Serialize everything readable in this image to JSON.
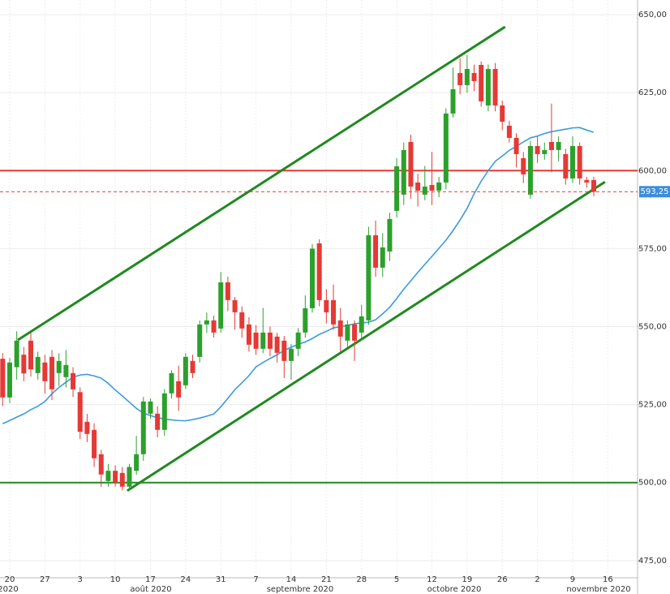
{
  "chart_data": {
    "type": "candlestick",
    "categories": [
      null,
      "20",
      null,
      null,
      null,
      null,
      "27",
      null,
      null,
      null,
      null,
      "3",
      null,
      null,
      null,
      null,
      "10",
      null,
      null,
      null,
      null,
      "17",
      null,
      null,
      null,
      null,
      "24",
      null,
      null,
      null,
      null,
      "31",
      null,
      null,
      null,
      null,
      "7",
      null,
      null,
      null,
      null,
      "14",
      null,
      null,
      null,
      null,
      "21",
      null,
      null,
      null,
      null,
      "28",
      null,
      null,
      null,
      null,
      "5",
      null,
      null,
      null,
      null,
      "12",
      null,
      null,
      null,
      null,
      "19",
      null,
      null,
      null,
      null,
      "26",
      null,
      null,
      null,
      null,
      "2",
      null,
      null,
      null,
      null,
      "9",
      null,
      null,
      null,
      null,
      "16"
    ],
    "month_labels": [
      "2020",
      "août 2020",
      "septembre 2020",
      "octobre 2020",
      "novembre 2020"
    ],
    "open": [
      539.7,
      527.3,
      537,
      541,
      545.5,
      535.1,
      538.5,
      540.3,
      535.1,
      533.8,
      535.1,
      529,
      519.5,
      516.9,
      509.1,
      500.5,
      503.8,
      503.1,
      498.7,
      503.8,
      509.1,
      522.1,
      522.1,
      516.9,
      528.6,
      532.5,
      531.2,
      539,
      540.3,
      550.7,
      552,
      549.4,
      564.2,
      558.5,
      554.6,
      550.7,
      548.1,
      542.9,
      548.1,
      546.8,
      545.5,
      539,
      542.9,
      548.1,
      555.9,
      576.7,
      558.5,
      558.5,
      552,
      545.5,
      550.7,
      548.1,
      552,
      579.3,
      568.9,
      574.1,
      587.1,
      592.3,
      609.2,
      596.2,
      592.3,
      595.4,
      593.6,
      596.2,
      618.3,
      631.3,
      627.4,
      631.3,
      633.9,
      620.9,
      632.6,
      620.9,
      614.4,
      610.5,
      604,
      592.3,
      607.9,
      605.3,
      609.2,
      606.6,
      605.3,
      597.5,
      607.9,
      597,
      597,
      null,
      null
    ],
    "high": [
      541.5,
      540,
      548.5,
      543.5,
      548,
      542,
      541,
      542.5,
      541.5,
      542.5,
      537,
      530.5,
      522,
      519,
      510.5,
      506,
      505.5,
      505,
      506,
      515,
      527.5,
      527,
      524.5,
      530,
      536,
      537.5,
      541.5,
      541,
      552,
      554.5,
      553.5,
      567.5,
      566,
      559.5,
      556.5,
      553,
      550.5,
      556,
      550,
      548,
      547,
      544.5,
      549.5,
      560,
      576.5,
      578,
      562,
      563.5,
      556,
      552,
      552,
      557,
      582,
      584,
      580,
      586.5,
      604,
      609,
      611.5,
      599,
      601.5,
      606,
      598,
      620,
      633,
      636,
      637,
      634,
      635,
      634,
      634.5,
      622.5,
      616,
      612,
      606,
      609.5,
      611,
      609,
      621.5,
      611,
      607,
      611,
      609,
      598,
      598,
      null,
      null
    ],
    "low": [
      524.5,
      525.5,
      533,
      532.5,
      534,
      533,
      528.5,
      526.5,
      531,
      530.5,
      527.5,
      514,
      513,
      505,
      498.7,
      498.7,
      498.7,
      497.5,
      497.5,
      502.5,
      507,
      520.5,
      514.5,
      515,
      527,
      523,
      530,
      533.5,
      538.5,
      548,
      546.5,
      548,
      555,
      549,
      546.5,
      542,
      541,
      541.5,
      540.5,
      538.5,
      533.5,
      533,
      540.5,
      546.5,
      554.5,
      556.5,
      551,
      549,
      542,
      543.5,
      539,
      546,
      550.5,
      566,
      566,
      571,
      585,
      589,
      591,
      588.5,
      590.5,
      589,
      591.5,
      594,
      617,
      624.5,
      625,
      625.5,
      620.5,
      619,
      619,
      613,
      609,
      601,
      596,
      591,
      602.5,
      603.5,
      599.5,
      603,
      595.5,
      596,
      595.5,
      594.5,
      591.8,
      null,
      null
    ],
    "close": [
      527.3,
      538.5,
      545.5,
      535,
      536.3,
      540.3,
      532.5,
      529.9,
      539,
      537.7,
      529.9,
      516.3,
      515.6,
      507.8,
      502.6,
      503.8,
      500,
      498.7,
      505,
      509.1,
      526,
      526,
      516.9,
      528.6,
      535.1,
      527.3,
      540.3,
      535.1,
      550.7,
      552,
      548.1,
      564.2,
      558.5,
      554.6,
      549.4,
      544.2,
      542.9,
      548.1,
      542.9,
      541.6,
      539,
      542.9,
      548.1,
      555.9,
      575,
      558.5,
      554.6,
      550.7,
      546.8,
      550.7,
      545.5,
      553.3,
      579.3,
      568.9,
      575.4,
      584.5,
      601.4,
      606.6,
      594.9,
      593.6,
      594.9,
      593.6,
      596.2,
      618.3,
      626.1,
      627.4,
      632.6,
      628.7,
      622.2,
      632.6,
      620.9,
      615.7,
      610.5,
      605.3,
      598.8,
      607.9,
      605.3,
      606.6,
      606.6,
      609.2,
      597.5,
      607.9,
      597.5,
      596.2,
      593.25,
      null,
      null
    ],
    "up_color": "#2ca02c",
    "down_color": "#e53935",
    "moving_average": {
      "color": "#3b9ae1",
      "values": [
        518.9,
        519.9,
        521,
        522,
        523.4,
        524.5,
        526,
        528.5,
        530.5,
        532.2,
        533.8,
        534.5,
        534.7,
        534.2,
        533.5,
        531.8,
        529.7,
        527.8,
        525.8,
        523.8,
        522.3,
        521.5,
        520.8,
        520.4,
        520.1,
        519.9,
        519.8,
        520.2,
        520.7,
        521.3,
        522,
        524.3,
        527,
        529.8,
        532,
        534.3,
        537.1,
        538.5,
        539.8,
        541,
        542.4,
        543.4,
        544.3,
        545.1,
        546.2,
        547.5,
        548.5,
        549.6,
        550,
        550.4,
        550.9,
        551.2,
        551.4,
        552.2,
        554.1,
        556.2,
        559,
        562,
        564.7,
        567.4,
        570,
        572.5,
        575.1,
        577.7,
        580.8,
        584.2,
        587.9,
        592.6,
        596.6,
        600,
        603,
        604.7,
        606.5,
        607.8,
        609.2,
        610.5,
        611.1,
        611.9,
        612.5,
        612.9,
        613.3,
        613.7,
        613.8,
        613,
        612.3,
        null,
        null
      ]
    },
    "hlines": [
      {
        "value": 600,
        "color": "#e53935"
      },
      {
        "value": 500,
        "color": "#1f8a1f"
      }
    ],
    "last_price": {
      "value": 593.25,
      "label": "593,25",
      "color": "#e53935",
      "box_color": "#3b8ede"
    },
    "trendlines": [
      {
        "color": "#1f8a1f",
        "x": [
          2.15,
          71.4
        ],
        "y": [
          545.7,
          646.1
        ]
      },
      {
        "color": "#1f8a1f",
        "x": [
          17.7,
          85.6
        ],
        "y": [
          497.4,
          596.4
        ]
      }
    ],
    "ylim": [
      469.5,
      654.7
    ],
    "yticks": [
      {
        "value": 475,
        "label": "475,00"
      },
      {
        "value": 500,
        "label": "500,00"
      },
      {
        "value": 525,
        "label": "525,00"
      },
      {
        "value": 550,
        "label": "550,00"
      },
      {
        "value": 575,
        "label": "575,00"
      },
      {
        "value": 600,
        "label": "600,00"
      },
      {
        "value": 625,
        "label": "625,00"
      },
      {
        "value": 650,
        "label": "650,00"
      }
    ],
    "grid": true
  }
}
